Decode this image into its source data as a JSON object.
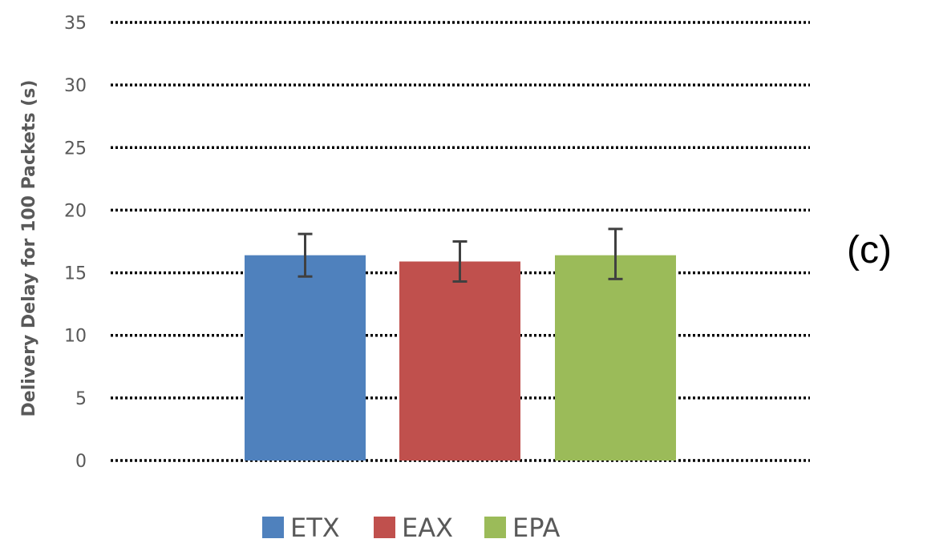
{
  "chart_data": {
    "type": "bar",
    "title": "",
    "panel_label": "(c)",
    "ylabel": "Delivery Delay for 100 Packets (s)",
    "xlabel": "",
    "ylim": [
      0,
      35
    ],
    "yticks": [
      0,
      5,
      10,
      15,
      20,
      25,
      30,
      35
    ],
    "grid": "horizontal dotted",
    "legend_position": "bottom",
    "series": [
      {
        "name": "ETX",
        "value": 16.4,
        "error": [
          14.7,
          18.1
        ],
        "color": "#4f81bd"
      },
      {
        "name": "EAX",
        "value": 15.9,
        "error": [
          14.3,
          17.5
        ],
        "color": "#c0504d"
      },
      {
        "name": "EPA",
        "value": 16.4,
        "error": [
          14.5,
          18.5
        ],
        "color": "#9bbb59"
      }
    ]
  }
}
